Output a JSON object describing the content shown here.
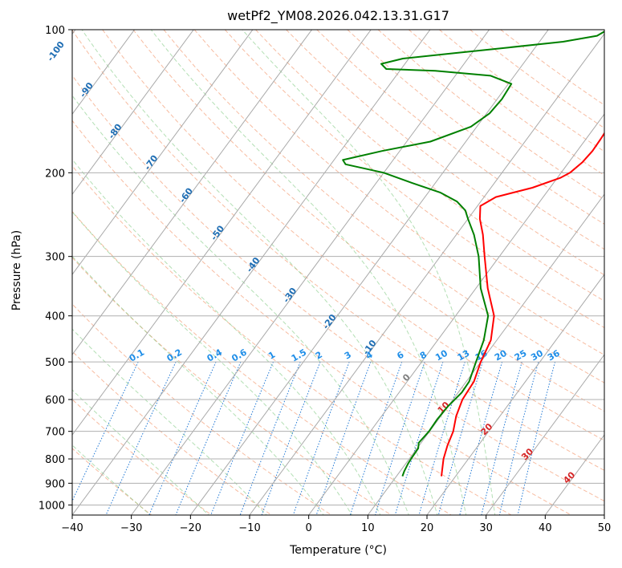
{
  "chart_data": {
    "type": "line",
    "subtype": "skew-T log-P diagram",
    "title": "wetPf2_YM08.2026.042.13.31.G17",
    "xlabel": "Temperature (°C)",
    "ylabel": "Pressure (hPa)",
    "xlim": [
      -40,
      50
    ],
    "ylim": [
      1050,
      100
    ],
    "y_scale": "log",
    "x_ticks": [
      -40,
      -30,
      -20,
      -10,
      0,
      10,
      20,
      30,
      40,
      50
    ],
    "y_ticks": [
      100,
      200,
      300,
      400,
      500,
      600,
      700,
      800,
      900,
      1000
    ],
    "grid": true,
    "legend": "none",
    "series": [
      {
        "color": "#ff0000",
        "points": [
          {
            "p": 870,
            "t": 17.6
          },
          {
            "p": 800,
            "t": 15.8
          },
          {
            "p": 750,
            "t": 14.8
          },
          {
            "p": 700,
            "t": 14.0
          },
          {
            "p": 650,
            "t": 12.6
          },
          {
            "p": 600,
            "t": 11.6
          },
          {
            "p": 550,
            "t": 11.3
          },
          {
            "p": 500,
            "t": 10.0
          },
          {
            "p": 450,
            "t": 9.0
          },
          {
            "p": 400,
            "t": 6.5
          },
          {
            "p": 350,
            "t": 2.0
          },
          {
            "p": 300,
            "t": -2.5
          },
          {
            "p": 270,
            "t": -5.5
          },
          {
            "p": 250,
            "t": -8.0
          },
          {
            "p": 235,
            "t": -9.5
          },
          {
            "p": 225,
            "t": -8.0
          },
          {
            "p": 215,
            "t": -3.0
          },
          {
            "p": 205,
            "t": 0.5
          },
          {
            "p": 200,
            "t": 1.5
          },
          {
            "p": 190,
            "t": 2.3
          },
          {
            "p": 180,
            "t": 2.6
          },
          {
            "p": 170,
            "t": 2.5
          },
          {
            "p": 160,
            "t": 2.3
          },
          {
            "p": 150,
            "t": 1.5
          },
          {
            "p": 140,
            "t": 0.3
          },
          {
            "p": 130,
            "t": -1.0
          },
          {
            "p": 120,
            "t": -2.5
          },
          {
            "p": 115,
            "t": -2.7
          },
          {
            "p": 110,
            "t": -2.8
          },
          {
            "p": 105,
            "t": -3.0
          },
          {
            "p": 100,
            "t": -4.0
          }
        ]
      },
      {
        "color": "#008000",
        "points": [
          {
            "p": 870,
            "t": 11.0
          },
          {
            "p": 850,
            "t": 10.7
          },
          {
            "p": 820,
            "t": 10.4
          },
          {
            "p": 800,
            "t": 10.3
          },
          {
            "p": 760,
            "t": 10.2
          },
          {
            "p": 740,
            "t": 9.6
          },
          {
            "p": 700,
            "t": 9.9
          },
          {
            "p": 660,
            "t": 9.8
          },
          {
            "p": 620,
            "t": 10.0
          },
          {
            "p": 580,
            "t": 10.6
          },
          {
            "p": 550,
            "t": 10.5
          },
          {
            "p": 500,
            "t": 9.2
          },
          {
            "p": 450,
            "t": 7.8
          },
          {
            "p": 400,
            "t": 5.5
          },
          {
            "p": 350,
            "t": 0.8
          },
          {
            "p": 300,
            "t": -3.5
          },
          {
            "p": 270,
            "t": -7.0
          },
          {
            "p": 250,
            "t": -10.0
          },
          {
            "p": 240,
            "t": -11.5
          },
          {
            "p": 230,
            "t": -14.0
          },
          {
            "p": 220,
            "t": -18.0
          },
          {
            "p": 210,
            "t": -24.0
          },
          {
            "p": 200,
            "t": -30.0
          },
          {
            "p": 192,
            "t": -37.5
          },
          {
            "p": 188,
            "t": -38.5
          },
          {
            "p": 180,
            "t": -33.0
          },
          {
            "p": 172,
            "t": -26.0
          },
          {
            "p": 160,
            "t": -21.0
          },
          {
            "p": 150,
            "t": -19.5
          },
          {
            "p": 140,
            "t": -19.2
          },
          {
            "p": 130,
            "t": -19.5
          },
          {
            "p": 125,
            "t": -24.0
          },
          {
            "p": 122,
            "t": -34.0
          },
          {
            "p": 121,
            "t": -42.5
          },
          {
            "p": 118,
            "t": -44.0
          },
          {
            "p": 115,
            "t": -41.0
          },
          {
            "p": 112,
            "t": -33.0
          },
          {
            "p": 109,
            "t": -24.5
          },
          {
            "p": 106,
            "t": -16.0
          },
          {
            "p": 103,
            "t": -11.0
          },
          {
            "p": 100,
            "t": -10.0
          }
        ]
      }
    ],
    "isotherms": [
      -120,
      -110,
      -100,
      -90,
      -80,
      -70,
      -60,
      -50,
      -40,
      -30,
      -20,
      -10,
      0,
      10,
      20,
      30,
      40,
      50
    ],
    "dry_adiabats_theta_c": [
      -30,
      -20,
      -10,
      0,
      10,
      20,
      30,
      40,
      50,
      60,
      70,
      80,
      90,
      100,
      110,
      120,
      130,
      140,
      150,
      160,
      170,
      180,
      190,
      200
    ],
    "moist_adiabats_c": [
      -30,
      -20,
      -10,
      0,
      5,
      10,
      15,
      20,
      25,
      30
    ],
    "mixing_ratio_lines": [
      "0.1",
      "0.2",
      "0.4",
      "0.6",
      "1",
      "1.5",
      "2",
      "3",
      "4",
      "6",
      "8",
      "10",
      "13",
      "16",
      "20",
      "25",
      "30",
      "36"
    ],
    "annotations": {
      "blue_isotherm_labels": [
        {
          "text": "-100",
          "t": -100,
          "p": 112
        },
        {
          "text": "-90",
          "t": -90,
          "p": 135
        },
        {
          "text": "-80",
          "t": -80,
          "p": 165
        },
        {
          "text": "-70",
          "t": -70,
          "p": 192
        },
        {
          "text": "-60",
          "t": -60,
          "p": 225
        },
        {
          "text": "-50",
          "t": -50,
          "p": 270
        },
        {
          "text": "-40",
          "t": -40,
          "p": 315
        },
        {
          "text": "-30",
          "t": -30,
          "p": 365
        },
        {
          "text": "-20",
          "t": -20,
          "p": 415
        },
        {
          "text": "-10",
          "t": -10,
          "p": 470
        }
      ],
      "isotherm_labels_lower": [
        {
          "text": "0",
          "t": 0,
          "p": 545,
          "color": "#808080"
        },
        {
          "text": "10",
          "t": 10,
          "p": 630,
          "color": "#d62728"
        },
        {
          "text": "20",
          "t": 20,
          "p": 700,
          "color": "#d62728"
        },
        {
          "text": "30",
          "t": 30,
          "p": 790,
          "color": "#d62728"
        },
        {
          "text": "40",
          "t": 40,
          "p": 885,
          "color": "#d62728"
        }
      ]
    }
  }
}
